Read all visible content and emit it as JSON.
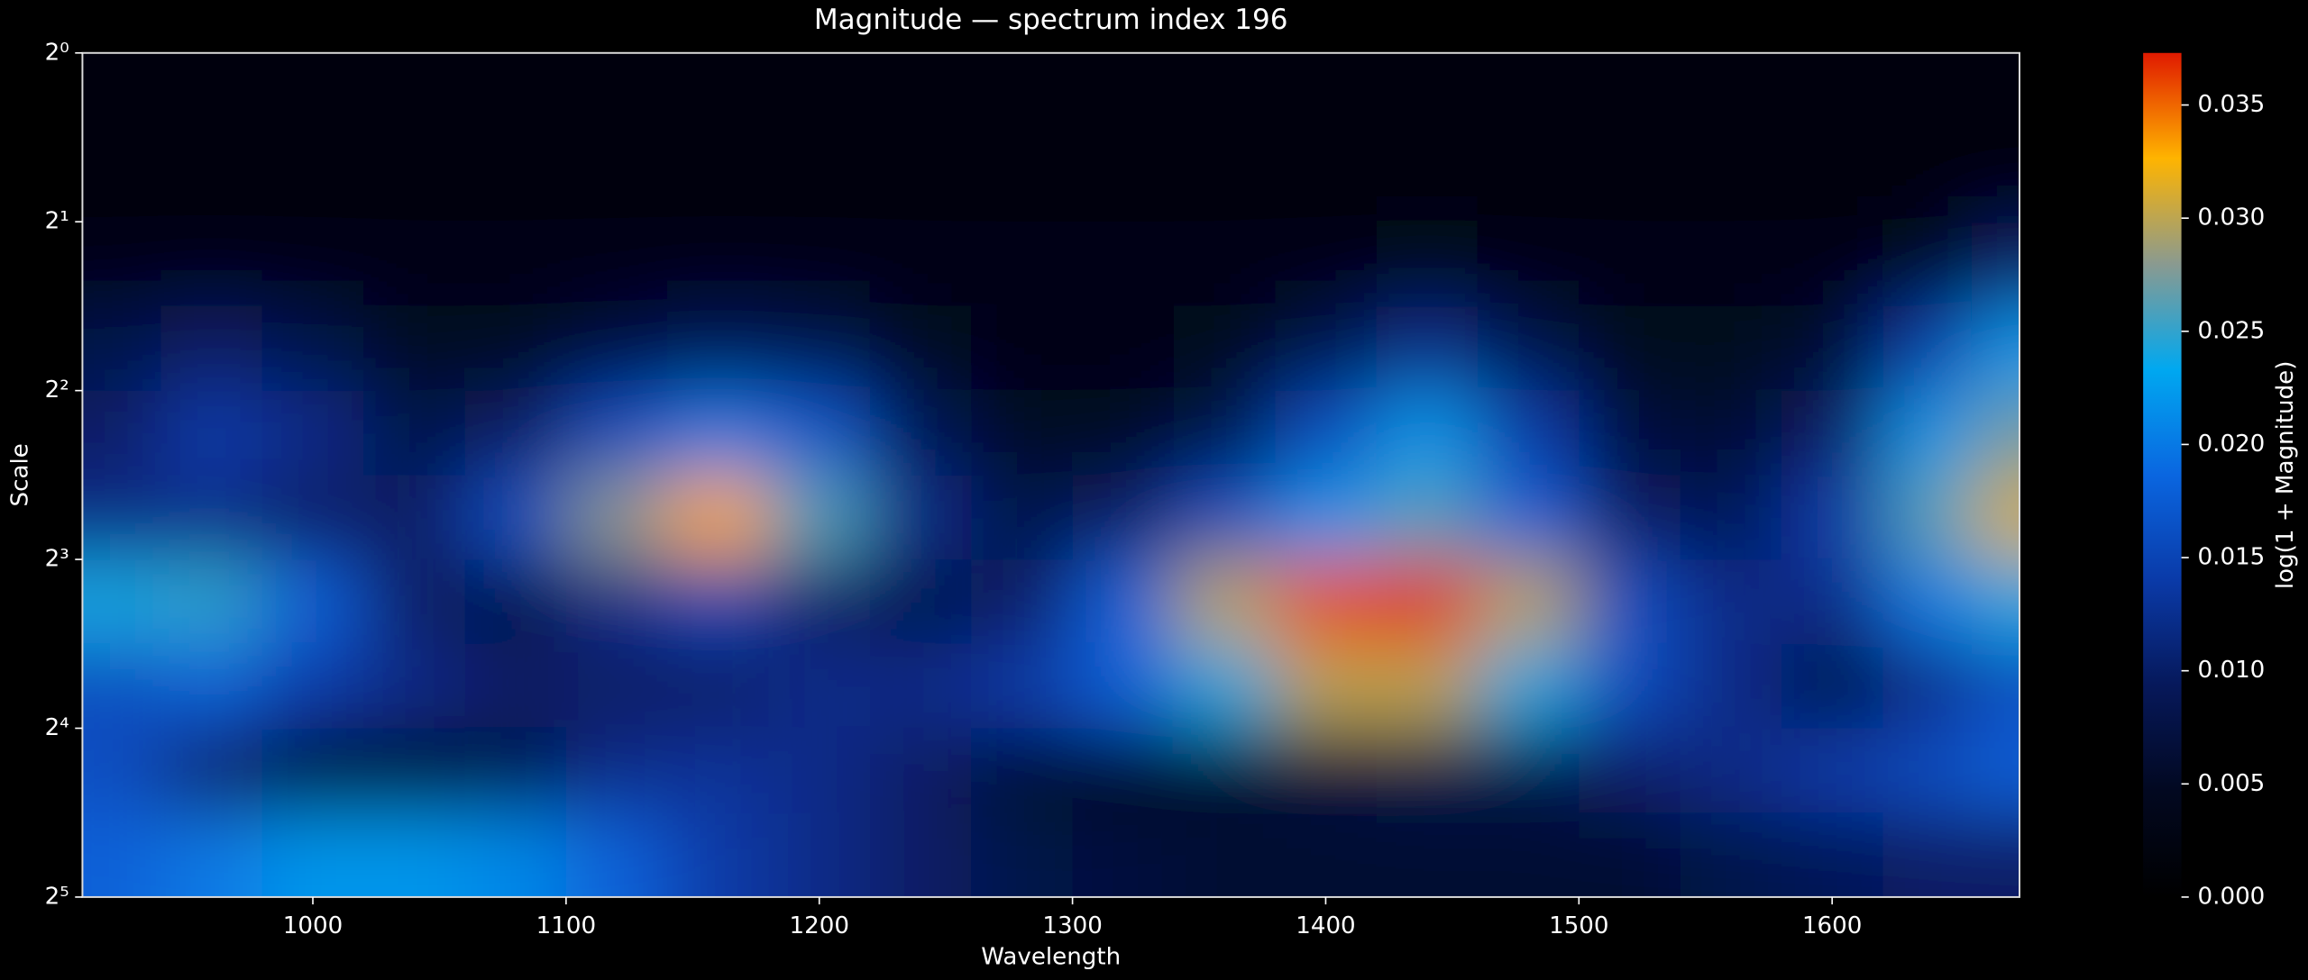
{
  "chart_data": {
    "type": "heatmap",
    "title": "Magnitude — spectrum index 196",
    "x_label": "Wavelength",
    "y_label": "Scale",
    "x": [
      920,
      960,
      1000,
      1040,
      1080,
      1120,
      1160,
      1200,
      1240,
      1280,
      1320,
      1360,
      1400,
      1440,
      1480,
      1520,
      1560,
      1600,
      1640,
      1670
    ],
    "y": [
      1.19,
      1.68,
      2.38,
      3.36,
      4.76,
      6.73,
      9.51,
      13.45,
      19.03,
      26.91
    ],
    "z": [
      [
        0.002,
        0.002,
        0.002,
        0.002,
        0.002,
        0.002,
        0.002,
        0.002,
        0.002,
        0.002,
        0.002,
        0.002,
        0.002,
        0.002,
        0.002,
        0.002,
        0.002,
        0.002,
        0.002,
        0.002
      ],
      [
        0.002,
        0.002,
        0.002,
        0.002,
        0.002,
        0.002,
        0.002,
        0.002,
        0.002,
        0.002,
        0.002,
        0.002,
        0.002,
        0.002,
        0.002,
        0.002,
        0.002,
        0.002,
        0.002,
        0.002
      ],
      [
        0.003,
        0.003,
        0.003,
        0.003,
        0.003,
        0.003,
        0.003,
        0.003,
        0.003,
        0.003,
        0.003,
        0.003,
        0.003,
        0.004,
        0.003,
        0.003,
        0.003,
        0.003,
        0.005,
        0.01
      ],
      [
        0.008,
        0.01,
        0.008,
        0.005,
        0.005,
        0.007,
        0.009,
        0.008,
        0.005,
        0.003,
        0.003,
        0.004,
        0.008,
        0.012,
        0.008,
        0.004,
        0.004,
        0.006,
        0.014,
        0.022
      ],
      [
        0.01,
        0.014,
        0.012,
        0.008,
        0.01,
        0.016,
        0.02,
        0.017,
        0.009,
        0.005,
        0.005,
        0.008,
        0.016,
        0.022,
        0.014,
        0.007,
        0.006,
        0.01,
        0.022,
        0.027
      ],
      [
        0.012,
        0.012,
        0.01,
        0.01,
        0.016,
        0.028,
        0.033,
        0.026,
        0.012,
        0.008,
        0.01,
        0.016,
        0.022,
        0.026,
        0.018,
        0.01,
        0.009,
        0.014,
        0.026,
        0.031
      ],
      [
        0.024,
        0.025,
        0.018,
        0.01,
        0.008,
        0.012,
        0.015,
        0.01,
        0.008,
        0.01,
        0.018,
        0.03,
        0.036,
        0.037,
        0.03,
        0.016,
        0.012,
        0.012,
        0.02,
        0.024
      ],
      [
        0.016,
        0.018,
        0.014,
        0.012,
        0.01,
        0.01,
        0.01,
        0.012,
        0.012,
        0.014,
        0.018,
        0.024,
        0.03,
        0.03,
        0.024,
        0.016,
        0.012,
        0.008,
        0.012,
        0.016
      ],
      [
        0.016,
        0.01,
        0.005,
        0.005,
        0.008,
        0.012,
        0.013,
        0.012,
        0.01,
        0.006,
        0.005,
        0.006,
        0.007,
        0.008,
        0.008,
        0.01,
        0.012,
        0.014,
        0.016,
        0.018
      ],
      [
        0.018,
        0.02,
        0.022,
        0.022,
        0.021,
        0.018,
        0.014,
        0.012,
        0.01,
        0.008,
        0.007,
        0.006,
        0.006,
        0.006,
        0.006,
        0.006,
        0.008,
        0.009,
        0.01,
        0.01
      ]
    ],
    "xlim": [
      909,
      1674
    ],
    "xticks": [
      1000,
      1100,
      1200,
      1300,
      1400,
      1500,
      1600
    ],
    "ylim": [
      1,
      32
    ],
    "y_scale": "log2",
    "y_inverted": true,
    "yticks": [
      {
        "value": 1,
        "label": "2⁰"
      },
      {
        "value": 2,
        "label": "2¹"
      },
      {
        "value": 4,
        "label": "2²"
      },
      {
        "value": 8,
        "label": "2³"
      },
      {
        "value": 16,
        "label": "2⁴"
      },
      {
        "value": 32,
        "label": "2⁵"
      }
    ],
    "colorbar": {
      "label": "log(1 + Magnitude)",
      "lim": [
        0,
        0.0373
      ],
      "ticks": [
        {
          "value": 0,
          "label": "0.000"
        },
        {
          "value": 0.005,
          "label": "0.005"
        },
        {
          "value": 0.01,
          "label": "0.010"
        },
        {
          "value": 0.015,
          "label": "0.015"
        },
        {
          "value": 0.02,
          "label": "0.020"
        },
        {
          "value": 0.025,
          "label": "0.025"
        },
        {
          "value": 0.03,
          "label": "0.030"
        },
        {
          "value": 0.035,
          "label": "0.035"
        }
      ],
      "colors": [
        "#000000",
        "#020820",
        "#06185a",
        "#0a3aa8",
        "#0a66e0",
        "#00a8f0",
        "#8a9a90",
        "#ffb400",
        "#e01a00"
      ]
    }
  }
}
